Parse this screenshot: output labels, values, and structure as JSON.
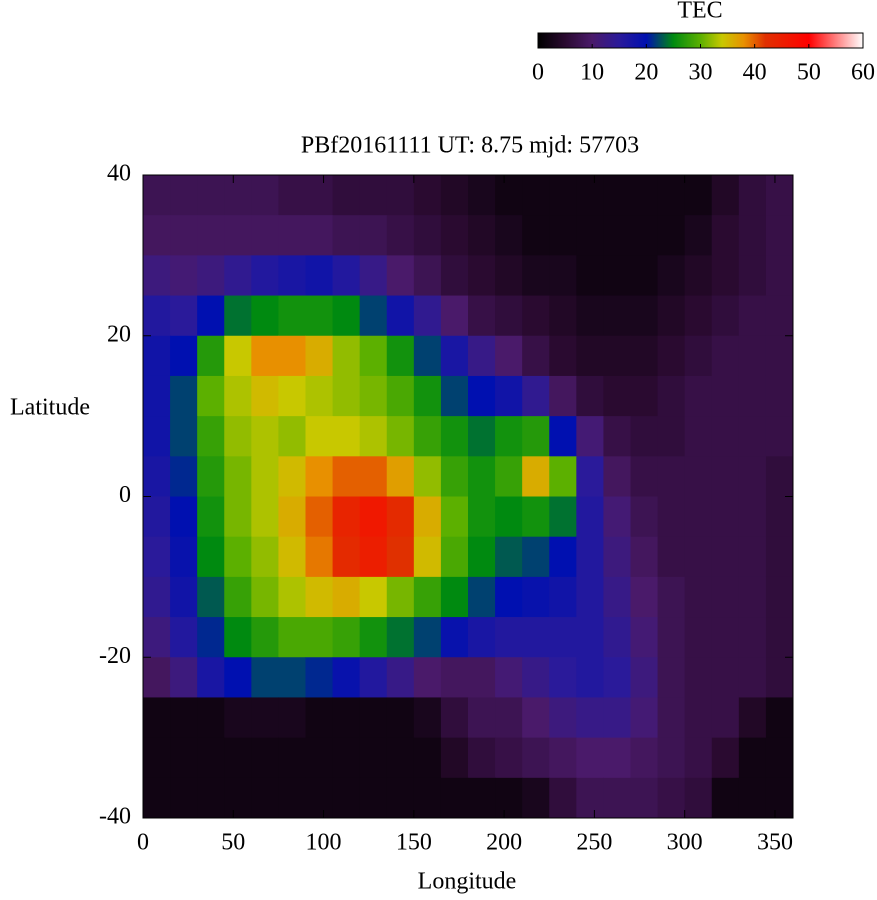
{
  "chart_data": {
    "type": "heatmap",
    "title": "PBf20161111  UT: 8.75  mjd: 57703",
    "xlabel": "Longitude",
    "ylabel": "Latitude",
    "xlim": [
      0,
      360
    ],
    "ylim": [
      -40,
      40
    ],
    "xticks": [
      0,
      50,
      100,
      150,
      200,
      250,
      300,
      350
    ],
    "yticks": [
      -40,
      -20,
      0,
      20,
      40
    ],
    "x": [
      7.5,
      22.5,
      37.5,
      52.5,
      67.5,
      82.5,
      97.5,
      112.5,
      127.5,
      142.5,
      157.5,
      172.5,
      187.5,
      202.5,
      217.5,
      232.5,
      247.5,
      262.5,
      277.5,
      292.5,
      307.5,
      322.5,
      337.5,
      352.5
    ],
    "y": [
      37.5,
      32.5,
      27.5,
      22.5,
      17.5,
      12.5,
      7.5,
      2.5,
      -2.5,
      -7.5,
      -12.5,
      -17.5,
      -22.5,
      -27.5,
      -32.5,
      -37.5
    ],
    "z": [
      [
        8,
        8,
        8,
        8,
        8,
        7,
        7,
        6,
        6,
        6,
        5,
        4,
        3,
        2,
        2,
        2,
        2,
        2,
        2,
        2,
        2,
        4,
        6,
        7
      ],
      [
        9,
        9,
        9,
        9,
        9,
        9,
        9,
        8,
        8,
        7,
        6,
        5,
        4,
        3,
        2,
        2,
        2,
        2,
        2,
        2,
        3,
        5,
        6,
        7
      ],
      [
        12,
        11,
        12,
        14,
        16,
        17,
        18,
        16,
        13,
        10,
        8,
        6,
        5,
        4,
        3,
        3,
        2,
        2,
        2,
        3,
        4,
        5,
        6,
        7
      ],
      [
        16,
        15,
        20,
        24,
        25,
        26,
        26,
        25,
        22,
        18,
        14,
        10,
        7,
        6,
        5,
        4,
        3,
        3,
        3,
        4,
        5,
        6,
        7,
        7
      ],
      [
        18,
        20,
        27,
        34,
        38,
        38,
        36,
        32,
        30,
        26,
        22,
        17,
        13,
        10,
        7,
        5,
        4,
        4,
        4,
        5,
        6,
        7,
        7,
        7
      ],
      [
        18,
        22,
        30,
        33,
        35,
        34,
        33,
        32,
        31,
        29,
        26,
        22,
        20,
        18,
        14,
        9,
        6,
        5,
        5,
        6,
        7,
        7,
        7,
        7
      ],
      [
        18,
        22,
        28,
        32,
        33,
        32,
        34,
        34,
        33,
        31,
        28,
        26,
        24,
        26,
        27,
        20,
        11,
        7,
        6,
        6,
        7,
        7,
        7,
        7
      ],
      [
        17,
        21,
        27,
        31,
        33,
        35,
        38,
        40,
        40,
        37,
        32,
        28,
        26,
        28,
        36,
        30,
        15,
        9,
        7,
        7,
        7,
        7,
        7,
        6
      ],
      [
        16,
        20,
        26,
        31,
        33,
        36,
        40,
        44,
        46,
        43,
        36,
        30,
        26,
        25,
        26,
        24,
        16,
        11,
        8,
        7,
        7,
        7,
        7,
        6
      ],
      [
        15,
        19,
        25,
        30,
        32,
        35,
        39,
        43,
        45,
        42,
        35,
        29,
        25,
        23,
        22,
        20,
        16,
        12,
        9,
        7,
        7,
        7,
        7,
        6
      ],
      [
        14,
        18,
        23,
        28,
        31,
        33,
        35,
        36,
        34,
        31,
        28,
        25,
        22,
        20,
        19,
        18,
        16,
        13,
        10,
        8,
        7,
        7,
        7,
        6
      ],
      [
        12,
        16,
        21,
        25,
        27,
        29,
        29,
        28,
        26,
        24,
        22,
        19,
        17,
        16,
        16,
        16,
        16,
        14,
        11,
        8,
        7,
        7,
        7,
        6
      ],
      [
        9,
        12,
        17,
        20,
        22,
        22,
        21,
        19,
        16,
        13,
        10,
        9,
        9,
        11,
        13,
        15,
        16,
        15,
        12,
        8,
        7,
        7,
        7,
        6
      ],
      [
        2,
        2,
        2,
        3,
        3,
        3,
        2,
        2,
        2,
        2,
        3,
        6,
        8,
        8,
        10,
        12,
        13,
        13,
        11,
        8,
        7,
        7,
        4,
        2
      ],
      [
        2,
        2,
        2,
        2,
        2,
        2,
        2,
        2,
        2,
        2,
        2,
        4,
        6,
        7,
        8,
        9,
        10,
        10,
        9,
        8,
        7,
        5,
        2,
        2
      ],
      [
        2,
        2,
        2,
        2,
        2,
        2,
        2,
        2,
        2,
        2,
        2,
        2,
        2,
        2,
        3,
        6,
        8,
        8,
        8,
        7,
        6,
        2,
        2,
        2
      ]
    ],
    "colorscale": [
      [
        0,
        "#000000"
      ],
      [
        5,
        "#2a0a30"
      ],
      [
        10,
        "#4a1a6a"
      ],
      [
        15,
        "#2a1a9a"
      ],
      [
        20,
        "#0010b0"
      ],
      [
        25,
        "#008a10"
      ],
      [
        30,
        "#5cb000"
      ],
      [
        34,
        "#c8c800"
      ],
      [
        38,
        "#e89000"
      ],
      [
        42,
        "#e03000"
      ],
      [
        50,
        "#ff0000"
      ],
      [
        60,
        "#ffffff"
      ]
    ],
    "colorbar": {
      "label": "TEC",
      "lim": [
        0,
        60
      ],
      "ticks": [
        0,
        10,
        20,
        30,
        40,
        50,
        60
      ]
    }
  }
}
